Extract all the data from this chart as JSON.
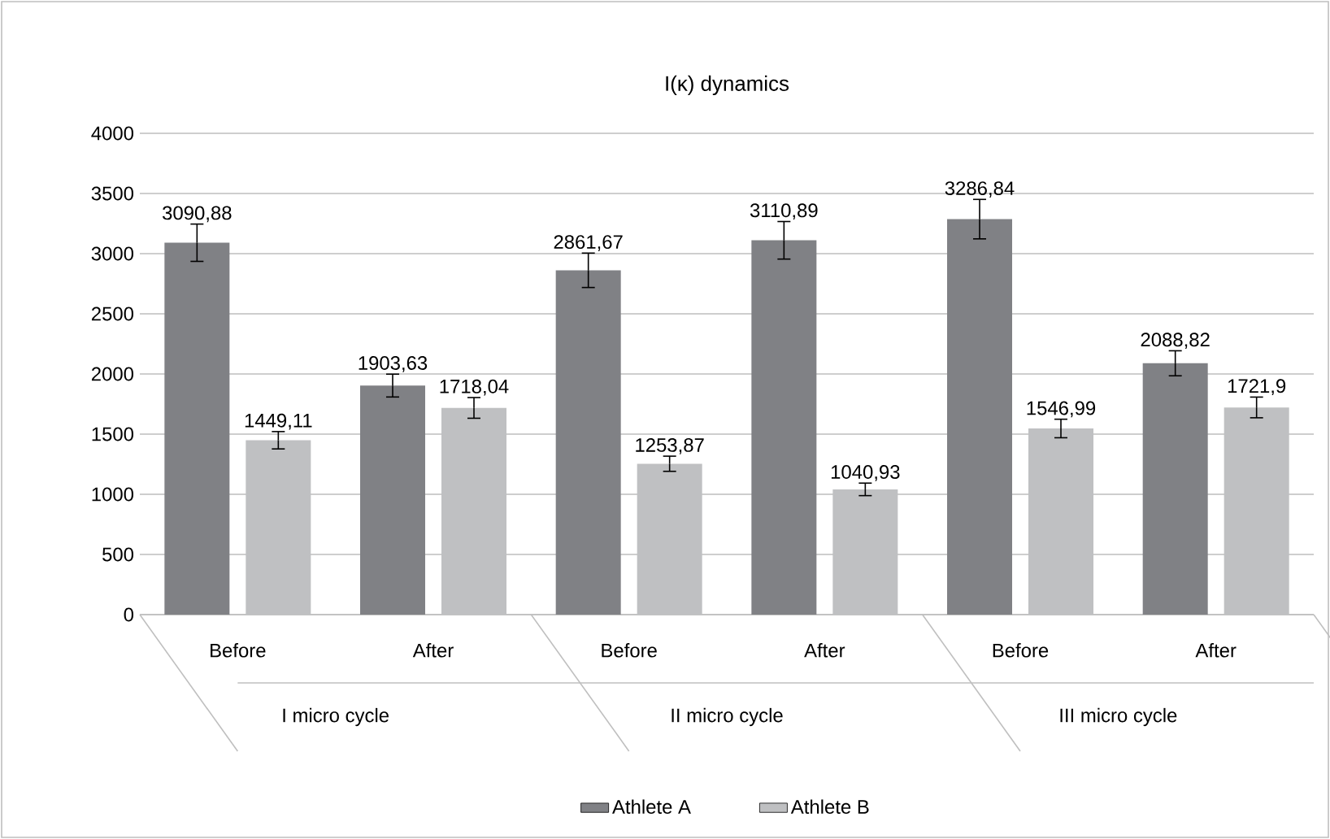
{
  "chart_data": {
    "type": "bar",
    "title": "I(κ) dynamics",
    "categories": [
      "Before",
      "After",
      "Before",
      "After",
      "Before",
      "After"
    ],
    "series": [
      {
        "name": "Athlete A",
        "color": "#808185",
        "values": [
          3090.88,
          1903.63,
          2861.67,
          3110.89,
          3286.84,
          2088.82
        ],
        "errors": [
          155,
          95,
          143,
          156,
          164,
          104
        ],
        "value_labels": [
          "3090,88",
          "1903,63",
          "2861,67",
          "3110,89",
          "3286,84",
          "2088,82"
        ]
      },
      {
        "name": "Athlete B",
        "color": "#bfc0c2",
        "values": [
          1449.11,
          1718.04,
          1253.87,
          1040.93,
          1546.99,
          1721.9
        ],
        "errors": [
          72,
          86,
          63,
          52,
          77,
          86
        ],
        "value_labels": [
          "1449,11",
          "1718,04",
          "1253,87",
          "1040,93",
          "1546,99",
          "1721,9"
        ]
      }
    ],
    "ylim": [
      0,
      4000
    ],
    "yticks": [
      0,
      500,
      1000,
      1500,
      2000,
      2500,
      3000,
      3500,
      4000
    ],
    "grid": "y",
    "legend": "bottom",
    "annotations": [
      "I micro cycle",
      "II micro cycle",
      "III micro cycle"
    ]
  }
}
